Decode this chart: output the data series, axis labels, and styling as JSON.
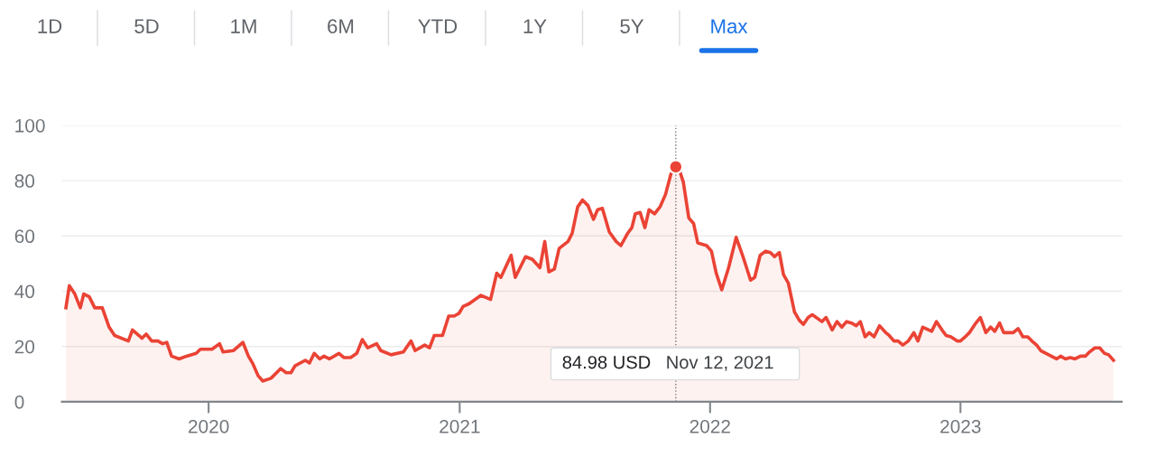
{
  "chart_data": {
    "type": "area",
    "x": [
      "2019-06-07",
      "2019-06-12",
      "2019-06-20",
      "2019-06-28",
      "2019-07-03",
      "2019-07-11",
      "2019-07-19",
      "2019-07-30",
      "2019-08-09",
      "2019-08-17",
      "2019-09-06",
      "2019-09-12",
      "2019-09-26",
      "2019-10-02",
      "2019-10-10",
      "2019-10-19",
      "2019-10-26",
      "2019-11-01",
      "2019-11-08",
      "2019-11-19",
      "2019-11-30",
      "2019-12-14",
      "2019-12-20",
      "2020-01-06",
      "2020-01-17",
      "2020-01-22",
      "2020-02-06",
      "2020-02-20",
      "2020-02-28",
      "2020-03-05",
      "2020-03-13",
      "2020-03-20",
      "2020-04-01",
      "2020-04-15",
      "2020-04-23",
      "2020-04-30",
      "2020-05-06",
      "2020-05-21",
      "2020-05-27",
      "2020-06-03",
      "2020-06-11",
      "2020-06-17",
      "2020-06-25",
      "2020-07-09",
      "2020-07-16",
      "2020-07-26",
      "2020-08-04",
      "2020-08-12",
      "2020-08-20",
      "2020-09-02",
      "2020-09-08",
      "2020-09-23",
      "2020-10-11",
      "2020-10-22",
      "2020-10-28",
      "2020-11-11",
      "2020-11-18",
      "2020-11-25",
      "2020-12-07",
      "2020-12-16",
      "2020-12-24",
      "2020-12-31",
      "2021-01-06",
      "2021-01-15",
      "2021-02-01",
      "2021-02-15",
      "2021-02-24",
      "2021-03-02",
      "2021-03-17",
      "2021-03-23",
      "2021-04-07",
      "2021-04-17",
      "2021-04-28",
      "2021-05-05",
      "2021-05-11",
      "2021-05-19",
      "2021-05-26",
      "2021-06-08",
      "2021-06-14",
      "2021-06-22",
      "2021-06-29",
      "2021-07-07",
      "2021-07-15",
      "2021-07-21",
      "2021-07-28",
      "2021-08-07",
      "2021-08-17",
      "2021-08-24",
      "2021-09-03",
      "2021-09-09",
      "2021-09-14",
      "2021-09-21",
      "2021-09-28",
      "2021-10-04",
      "2021-10-12",
      "2021-10-20",
      "2021-10-28",
      "2021-11-05",
      "2021-11-12",
      "2021-11-17",
      "2021-11-23",
      "2021-12-01",
      "2021-12-08",
      "2021-12-14",
      "2021-12-27",
      "2022-01-03",
      "2022-01-10",
      "2022-01-18",
      "2022-01-28",
      "2022-02-08",
      "2022-02-18",
      "2022-03-01",
      "2022-03-07",
      "2022-03-15",
      "2022-03-23",
      "2022-03-30",
      "2022-04-05",
      "2022-04-12",
      "2022-04-18",
      "2022-04-25",
      "2022-05-04",
      "2022-05-11",
      "2022-05-17",
      "2022-05-24",
      "2022-05-30",
      "2022-06-13",
      "2022-06-19",
      "2022-06-28",
      "2022-07-05",
      "2022-07-12",
      "2022-07-19",
      "2022-07-26",
      "2022-08-02",
      "2022-08-08",
      "2022-08-15",
      "2022-08-21",
      "2022-08-28",
      "2022-09-05",
      "2022-09-14",
      "2022-09-19",
      "2022-09-26",
      "2022-10-02",
      "2022-10-09",
      "2022-10-17",
      "2022-10-25",
      "2022-10-31",
      "2022-11-07",
      "2022-11-20",
      "2022-11-27",
      "2022-12-05",
      "2022-12-11",
      "2022-12-18",
      "2022-12-27",
      "2023-01-01",
      "2023-01-08",
      "2023-01-14",
      "2023-01-22",
      "2023-01-30",
      "2023-02-07",
      "2023-02-14",
      "2023-02-20",
      "2023-02-27",
      "2023-03-05",
      "2023-03-19",
      "2023-03-26",
      "2023-04-02",
      "2023-04-09",
      "2023-04-15",
      "2023-04-22",
      "2023-04-28",
      "2023-05-21",
      "2023-05-27",
      "2023-06-03",
      "2023-06-10",
      "2023-06-17",
      "2023-06-25",
      "2023-07-02",
      "2023-07-08",
      "2023-07-16",
      "2023-07-23",
      "2023-07-30",
      "2023-08-05",
      "2023-08-12"
    ],
    "series": [
      {
        "color": "#ea4335",
        "values": [
          34,
          42,
          39,
          34,
          39,
          38,
          34,
          34,
          27,
          24,
          22,
          26,
          23,
          24.5,
          22,
          22,
          21,
          21.5,
          16.5,
          15.5,
          16.5,
          17.5,
          19,
          19,
          21,
          18,
          18.5,
          21.5,
          16.5,
          14,
          9.5,
          7.5,
          8.5,
          12,
          10.5,
          10.5,
          13,
          15,
          14,
          17.5,
          15.5,
          16.5,
          15.5,
          17.5,
          16,
          16,
          17.5,
          22.5,
          19.5,
          21,
          18.5,
          17,
          18,
          22,
          18.5,
          20.5,
          19.5,
          24,
          24,
          31,
          31,
          32,
          34.5,
          35.5,
          38.5,
          37,
          46.5,
          45,
          53,
          45,
          52.5,
          51.5,
          48.5,
          58,
          47,
          48,
          55.5,
          58,
          61,
          70.5,
          73,
          71,
          66,
          69.5,
          70,
          61.5,
          58,
          56.5,
          61,
          63,
          68,
          68.5,
          63,
          69.5,
          68,
          70.5,
          75,
          82.5,
          85,
          84,
          79.5,
          66.5,
          64.5,
          57.5,
          56.5,
          54.5,
          46.5,
          40.5,
          48.5,
          59.5,
          52.5,
          44,
          45,
          53,
          54.5,
          54,
          52.5,
          54,
          46,
          43,
          32.5,
          29.5,
          28,
          30.5,
          31.5,
          29,
          30.5,
          26,
          29,
          27,
          29,
          28.5,
          27.5,
          29,
          23.5,
          25,
          23.5,
          27.5,
          25,
          24,
          22,
          22,
          20.5,
          22,
          25,
          22,
          27,
          25.5,
          29,
          26,
          24,
          23.5,
          22,
          22,
          23.5,
          25,
          28,
          30.5,
          25,
          27,
          25.5,
          28.5,
          25,
          25,
          26.5,
          23.5,
          23.5,
          22,
          20.5,
          18.5,
          15.5,
          16.5,
          15.5,
          16,
          15.5,
          16.5,
          16.5,
          18,
          19.5,
          19.5,
          17.5,
          17,
          15
        ]
      },
      {
        "type": "scatter",
        "marker": "circle",
        "color": "#ea4335",
        "x": [
          "2021-11-12"
        ],
        "values": [
          85
        ]
      }
    ],
    "xlim": [
      "2019-06-01",
      "2023-08-24"
    ],
    "ylim": [
      0,
      100
    ],
    "yticks": [
      0,
      20,
      40,
      60,
      80,
      100
    ],
    "xticks": [
      "2020",
      "2021",
      "2022",
      "2023"
    ],
    "grid": "y",
    "line_style": "solid",
    "marker": "none",
    "ref_lines": [
      {
        "axis": "x",
        "value": "2021-11-12",
        "color": "#757575",
        "line_style": "dotted"
      }
    ],
    "annotations": [
      "84.98 USD",
      "Nov 12, 2021",
      "1D",
      "5D",
      "1M",
      "6M",
      "YTD",
      "1Y",
      "5Y",
      "Max"
    ]
  }
}
